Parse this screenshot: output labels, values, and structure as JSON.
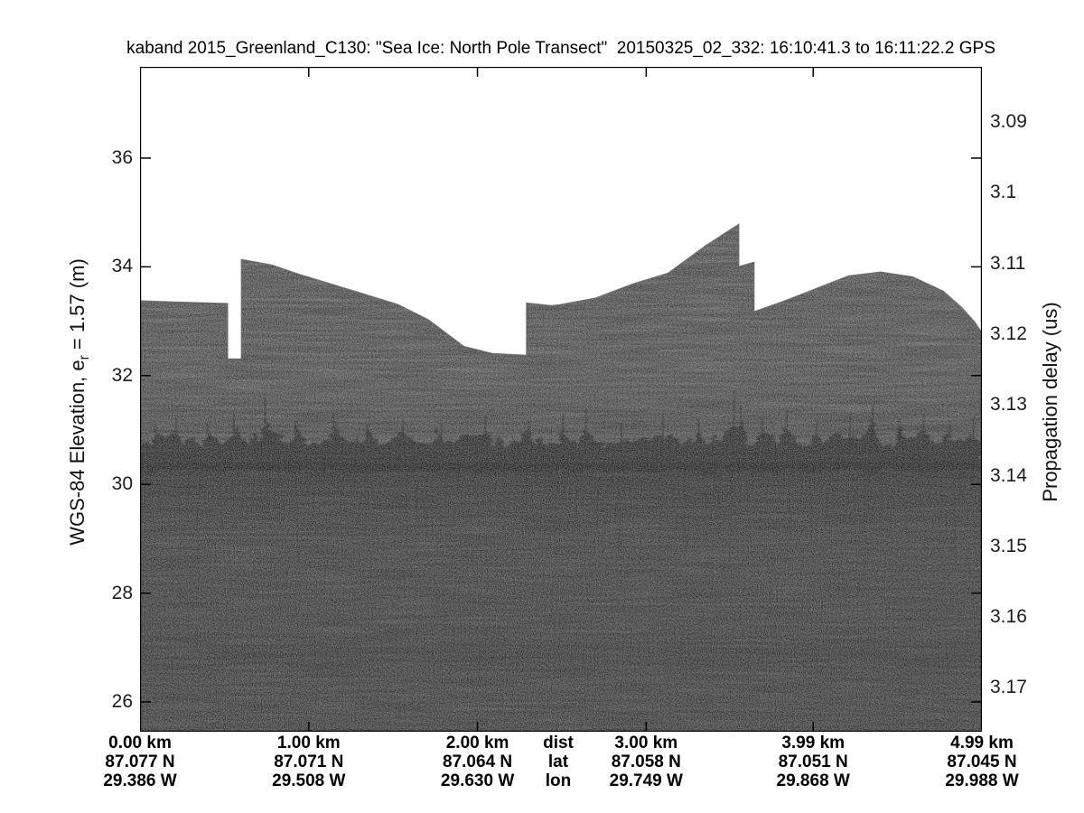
{
  "figure": {
    "title": "kaband 2015_Greenland_C130: \"Sea Ice: North Pole Transect\"  20150325_02_332: 16:10:41.3 to 16:11:22.2 GPS",
    "background_color": "#ffffff"
  },
  "left_axis": {
    "label_prefix": "WGS-84 Elevation, e",
    "label_sub": "r",
    "label_suffix": " = 1.57 (m)",
    "ticks": [
      "36",
      "34",
      "32",
      "30",
      "28",
      "26"
    ]
  },
  "right_axis": {
    "label": "Propagation delay (us)",
    "ticks": [
      "3.09",
      "3.1",
      "3.11",
      "3.12",
      "3.13",
      "3.14",
      "3.15",
      "3.16",
      "3.17"
    ]
  },
  "x_axis": {
    "columns": [
      {
        "dist": "0.00 km",
        "lat": "87.077 N",
        "lon": "29.386 W"
      },
      {
        "dist": "1.00 km",
        "lat": "87.071 N",
        "lon": "29.508 W"
      },
      {
        "dist": "2.00 km",
        "lat": "87.064 N",
        "lon": "29.630 W"
      },
      {
        "dist": "dist",
        "lat": "lat",
        "lon": "lon"
      },
      {
        "dist": "3.00 km",
        "lat": "87.058 N",
        "lon": "29.749 W"
      },
      {
        "dist": "3.99 km",
        "lat": "87.051 N",
        "lon": "29.868 W"
      },
      {
        "dist": "4.99 km",
        "lat": "87.045 N",
        "lon": "29.988 W"
      }
    ]
  },
  "chart_data": {
    "type": "heatmap",
    "subtype": "radar-echogram",
    "title": "kaband 2015_Greenland_C130: \"Sea Ice: North Pole Transect\"  20150325_02_332: 16:10:41.3 to 16:11:22.2 GPS",
    "x_range_km": [
      0.0,
      4.99
    ],
    "x_tick_km": [
      0.0,
      1.0,
      2.0,
      3.0,
      3.99,
      4.99
    ],
    "left_y": {
      "label": "WGS-84 Elevation, e_r = 1.57 (m)",
      "tick_values": [
        36,
        34,
        32,
        30,
        28,
        26
      ],
      "view_top_m": 37.68,
      "view_bottom_m": 25.45
    },
    "right_y": {
      "label": "Propagation delay (us)",
      "tick_values": [
        3.09,
        3.1,
        3.11,
        3.12,
        3.13,
        3.14,
        3.15,
        3.16,
        3.17
      ]
    },
    "surface_profile": {
      "x_km": [
        0.0,
        0.2,
        0.52,
        0.52,
        0.6,
        0.6,
        0.78,
        0.94,
        1.1,
        1.31,
        1.53,
        1.71,
        1.92,
        2.09,
        2.29,
        2.29,
        2.44,
        2.49,
        2.7,
        2.92,
        3.13,
        3.35,
        3.55,
        3.55,
        3.64,
        3.64,
        3.83,
        4.02,
        4.2,
        4.39,
        4.58,
        4.76,
        4.87,
        4.95,
        4.99
      ],
      "elev_m": [
        33.38,
        33.36,
        33.33,
        32.31,
        32.31,
        34.14,
        34.04,
        33.87,
        33.72,
        33.52,
        33.31,
        33.03,
        32.54,
        32.41,
        32.38,
        33.34,
        33.29,
        33.31,
        33.43,
        33.69,
        33.89,
        34.39,
        34.79,
        34.01,
        34.09,
        33.18,
        33.39,
        33.62,
        33.84,
        33.91,
        33.82,
        33.56,
        33.26,
        32.98,
        32.79
      ]
    },
    "layers": {
      "strong_scattering_band_elev_m": [
        30.6,
        31.1
      ],
      "faint_deep_band_elev_m": [
        26.8,
        27.3
      ],
      "noise_floor_extends_to_m": 25.45
    },
    "colors": {
      "upper_body_gray": "#7a7a7a",
      "lower_body_gray": "#4f4f4f",
      "scatter_band_dark": "#1f1f1f",
      "frame": "#000000",
      "background": "#ffffff"
    },
    "legend": "none",
    "grid": "off"
  }
}
